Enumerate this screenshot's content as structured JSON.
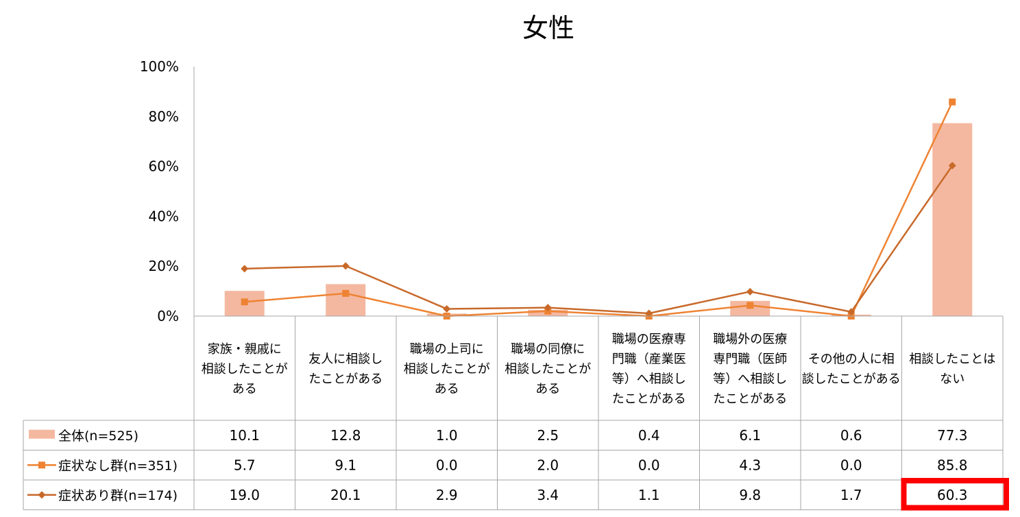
{
  "chart_data": {
    "type": "bar",
    "title": "女性",
    "categories": [
      [
        "家族・親戚に",
        "相談したことが",
        "ある"
      ],
      [
        "友人に相談し",
        "たことがある"
      ],
      [
        "職場の上司に",
        "相談したことが",
        "ある"
      ],
      [
        "職場の同僚に",
        "相談したことが",
        "ある"
      ],
      [
        "職場の医療専",
        "門職（産業医",
        "等）へ相談し",
        "たことがある"
      ],
      [
        "職場外の医療",
        "専門職（医師",
        "等）へ相談し",
        "たことがある"
      ],
      [
        "その他の人に相",
        "談したことがある"
      ],
      [
        "相談したことは",
        "ない"
      ]
    ],
    "yticks": [
      "0%",
      "20%",
      "40%",
      "60%",
      "80%",
      "100%"
    ],
    "ylim": [
      0,
      100
    ],
    "series": [
      {
        "name": "全体(n=525)",
        "kind": "bar",
        "color": "#f4b8a0",
        "values": [
          10.1,
          12.8,
          1.0,
          2.5,
          0.4,
          6.1,
          0.6,
          77.3
        ],
        "labels": [
          "10.1",
          "12.8",
          "1.0",
          "2.5",
          "0.4",
          "6.1",
          "0.6",
          "77.3"
        ]
      },
      {
        "name": "症状なし群(n=351)",
        "kind": "line",
        "marker": "square",
        "color": "#ee8333",
        "values": [
          5.7,
          9.1,
          0.0,
          2.0,
          0.0,
          4.3,
          0.0,
          85.8
        ],
        "labels": [
          "5.7",
          "9.1",
          "0.0",
          "2.0",
          "0.0",
          "4.3",
          "0.0",
          "85.8"
        ]
      },
      {
        "name": "症状あり群(n=174)",
        "kind": "line",
        "marker": "diamond",
        "color": "#c8692a",
        "values": [
          19.0,
          20.1,
          2.9,
          3.4,
          1.1,
          9.8,
          1.7,
          60.3
        ],
        "labels": [
          "19.0",
          "20.1",
          "2.9",
          "3.4",
          "1.1",
          "9.8",
          "1.7",
          "60.3"
        ]
      }
    ],
    "highlight": {
      "series": 2,
      "category": 7,
      "color": "#ff0000"
    },
    "grid": false,
    "legend": "table"
  }
}
